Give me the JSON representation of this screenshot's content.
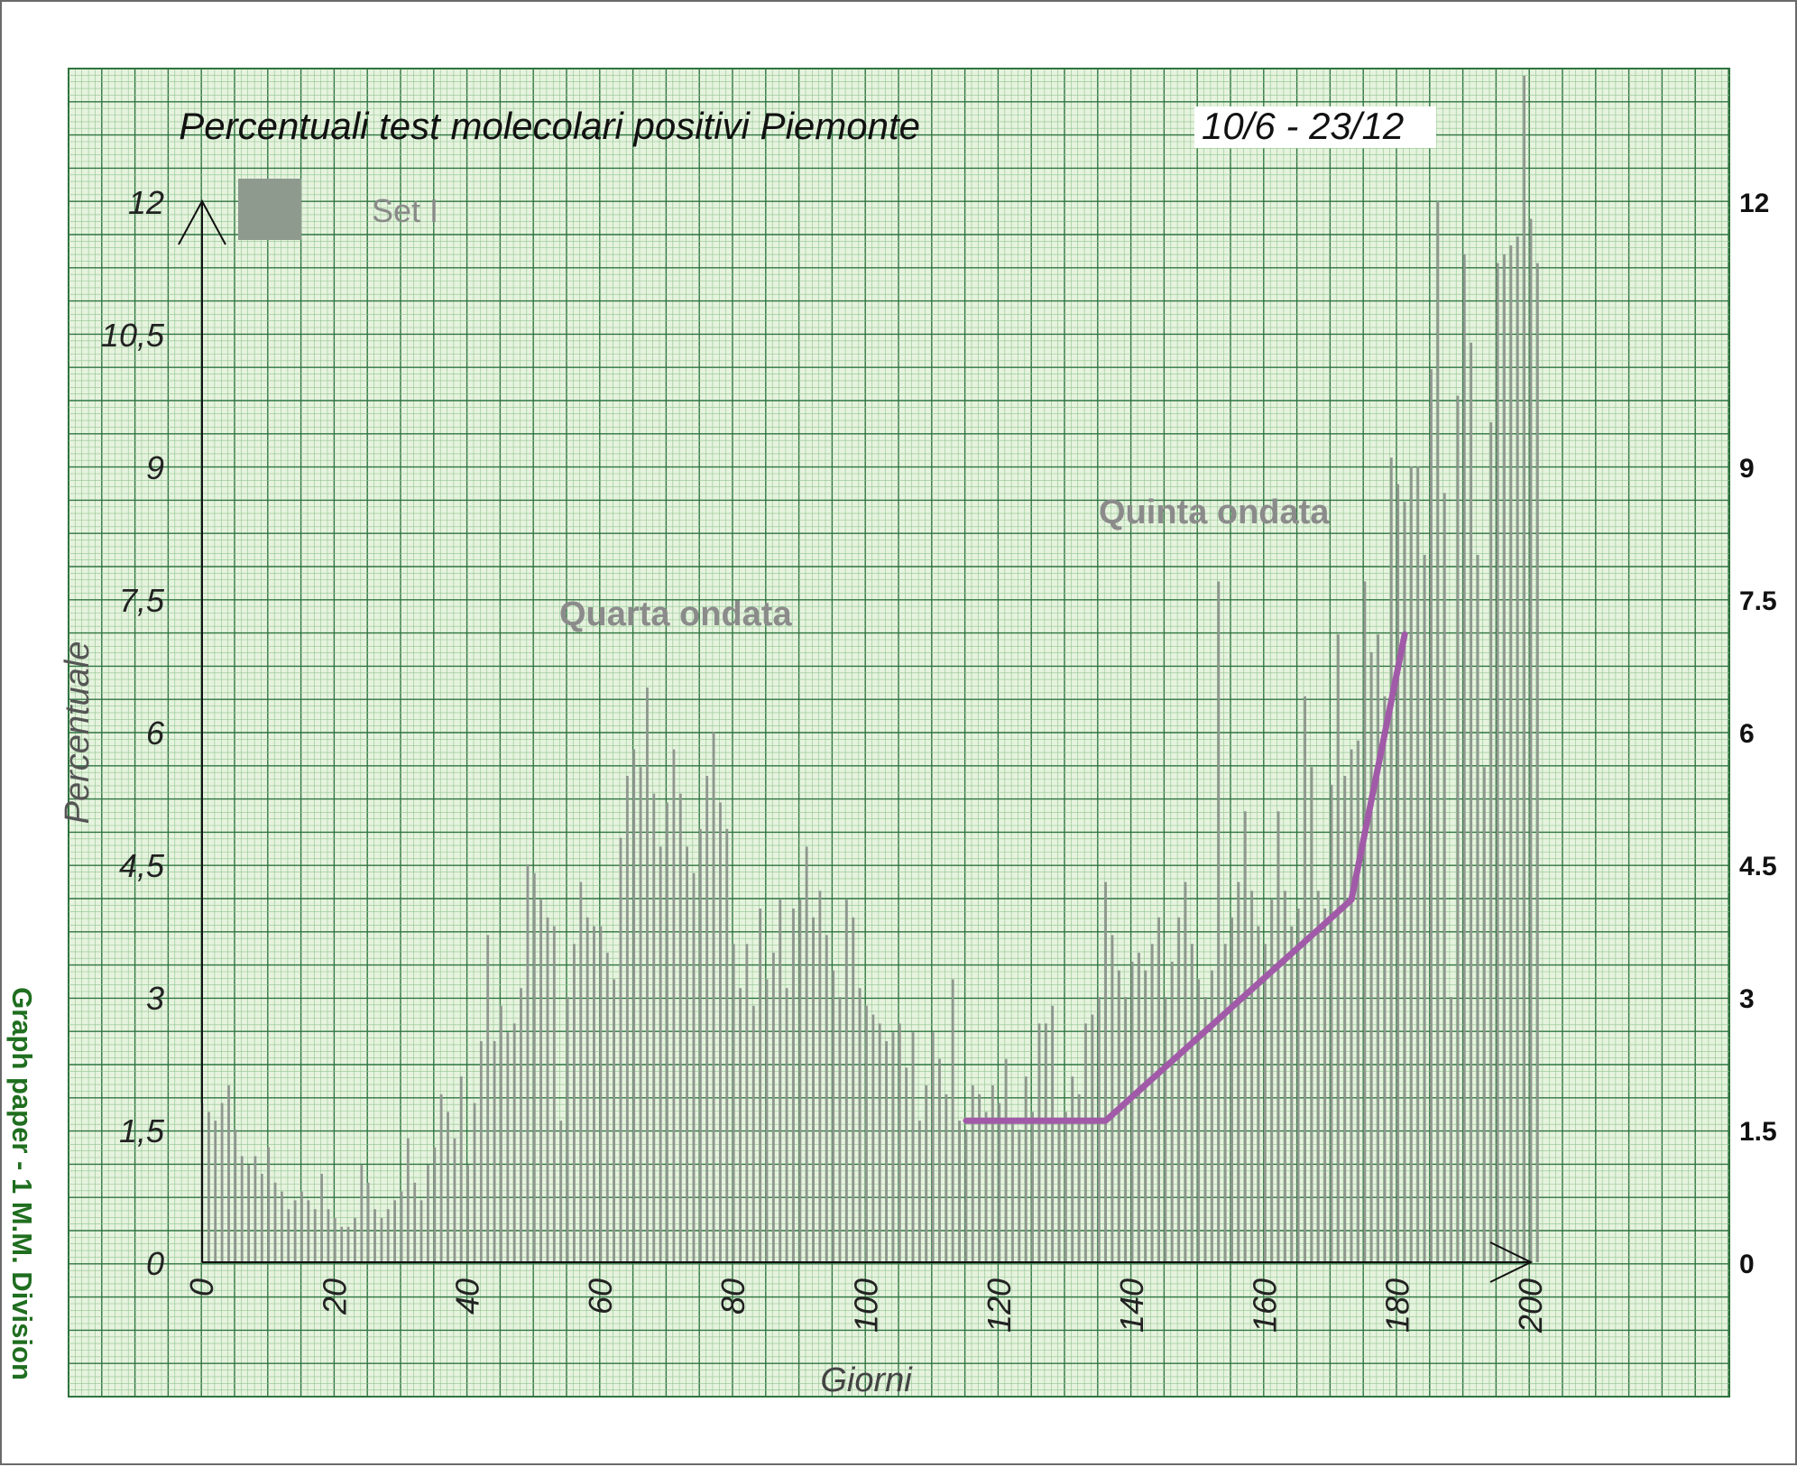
{
  "chart_data": {
    "type": "bar",
    "title": "Percentuali test molecolari positivi Piemonte",
    "date_range_label": "10/6 - 23/12",
    "legend": [
      {
        "label": "Set I",
        "color": "#8f9a8f"
      }
    ],
    "xlabel": "Giorni",
    "ylabel": "Percentuale",
    "xlim": [
      0,
      200
    ],
    "ylim": [
      0,
      12
    ],
    "y_ticks_left": [
      "0",
      "1,5",
      "3",
      "4,5",
      "6",
      "7,5",
      "9",
      "10,5",
      "12"
    ],
    "y_ticks_right": [
      "0",
      "1.5",
      "3",
      "4.5",
      "6",
      "7.5",
      "9",
      "12"
    ],
    "x_ticks": [
      "0",
      "20",
      "40",
      "60",
      "80",
      "100",
      "120",
      "140",
      "160",
      "180",
      "200"
    ],
    "annotations": [
      "Quarta ondata",
      "Quinta ondata"
    ],
    "grid": true,
    "series": [
      {
        "name": "Set I",
        "values": [
          1.8,
          1.7,
          1.6,
          1.8,
          2.0,
          1.5,
          1.2,
          1.1,
          1.2,
          1.0,
          1.3,
          0.9,
          0.8,
          0.6,
          0.7,
          0.8,
          0.7,
          0.6,
          1.0,
          0.6,
          0.5,
          0.4,
          0.4,
          0.5,
          1.1,
          0.9,
          0.6,
          0.5,
          0.6,
          0.7,
          0.8,
          1.4,
          0.9,
          0.7,
          1.1,
          1.3,
          1.9,
          1.7,
          1.4,
          2.1,
          1.1,
          1.8,
          2.5,
          3.7,
          2.5,
          2.9,
          2.6,
          2.7,
          3.1,
          4.5,
          4.4,
          4.1,
          3.9,
          3.8,
          1.6,
          3.0,
          3.6,
          4.3,
          3.9,
          3.8,
          3.8,
          3.5,
          3.2,
          4.8,
          5.5,
          5.8,
          5.6,
          6.5,
          5.3,
          4.7,
          5.2,
          5.8,
          5.3,
          4.7,
          4.4,
          4.9,
          5.5,
          6.0,
          5.2,
          4.9,
          3.6,
          3.1,
          3.6,
          2.9,
          4.0,
          3.2,
          3.5,
          4.1,
          3.1,
          4.0,
          4.1,
          4.7,
          3.9,
          4.2,
          3.7,
          3.3,
          3.0,
          4.1,
          3.9,
          3.1,
          2.9,
          2.8,
          2.7,
          2.5,
          2.6,
          2.7,
          2.2,
          2.6,
          1.6,
          2.0,
          2.6,
          2.3,
          1.9,
          3.2,
          1.6,
          1.5,
          2.0,
          1.9,
          1.7,
          2.0,
          1.8,
          2.3,
          1.6,
          1.5,
          2.1,
          1.7,
          2.7,
          2.7,
          2.9,
          1.6,
          1.7,
          2.1,
          1.9,
          2.7,
          2.8,
          3.0,
          4.3,
          3.7,
          3.3,
          3.0,
          3.4,
          3.5,
          3.3,
          3.6,
          3.9,
          3.0,
          3.4,
          3.9,
          4.3,
          3.6,
          3.2,
          3.0,
          3.3,
          7.7,
          3.6,
          3.9,
          4.3,
          5.1,
          4.2,
          3.8,
          3.6,
          4.1,
          5.1,
          4.2,
          3.8,
          4.0,
          6.4,
          5.6,
          4.2,
          4.0,
          5.4,
          7.1,
          5.5,
          5.8,
          5.9,
          7.7,
          6.9,
          7.1,
          6.4,
          9.1,
          8.8,
          8.6,
          9.0,
          9.0,
          8.0,
          10.1,
          12.0,
          8.7,
          3.0,
          9.8,
          11.4,
          10.4,
          8.0,
          5.6,
          9.5,
          11.3,
          11.4,
          11.5,
          11.6,
          13.7,
          11.8,
          11.3
        ]
      },
      {
        "name": "Trend",
        "points": [
          [
            115,
            1.6
          ],
          [
            136,
            1.6
          ],
          [
            173,
            4.1
          ],
          [
            181,
            7.1
          ]
        ]
      }
    ]
  }
}
